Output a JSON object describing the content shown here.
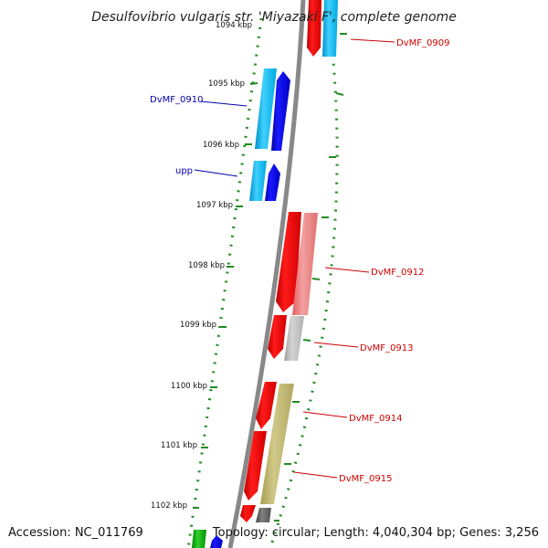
{
  "title": "Desulfovibrio vulgaris str. 'Miyazaki F', complete genome",
  "accession": "Accession: NC_011769",
  "summary": "Topology: circular; Length: 4,040,304 bp; Genes: 3,256",
  "ticks": [
    "1094 kbp",
    "1095 kbp",
    "1096 kbp",
    "1097 kbp",
    "1098 kbp",
    "1099 kbp",
    "1100 kbp",
    "1101 kbp",
    "1102 kbp"
  ],
  "gene_labels": {
    "dvmf_0909": "DvMF_0909",
    "dvmf_0910": "DvMF_0910",
    "upp": "upp",
    "dvmf_0912": "DvMF_0912",
    "dvmf_0913": "DvMF_0913",
    "dvmf_0914": "DvMF_0914",
    "dvmf_0915": "DvMF_0915"
  },
  "colors": {
    "forward_cds": "#ff0000",
    "forward_gene_light": "#f08080",
    "reverse_cds": "#0000ee",
    "reverse_gene_light": "#00bfff",
    "backbone": "#808080",
    "gc_dots": "#228b22",
    "label_red": "#cc0000",
    "label_blue": "#0000aa"
  }
}
